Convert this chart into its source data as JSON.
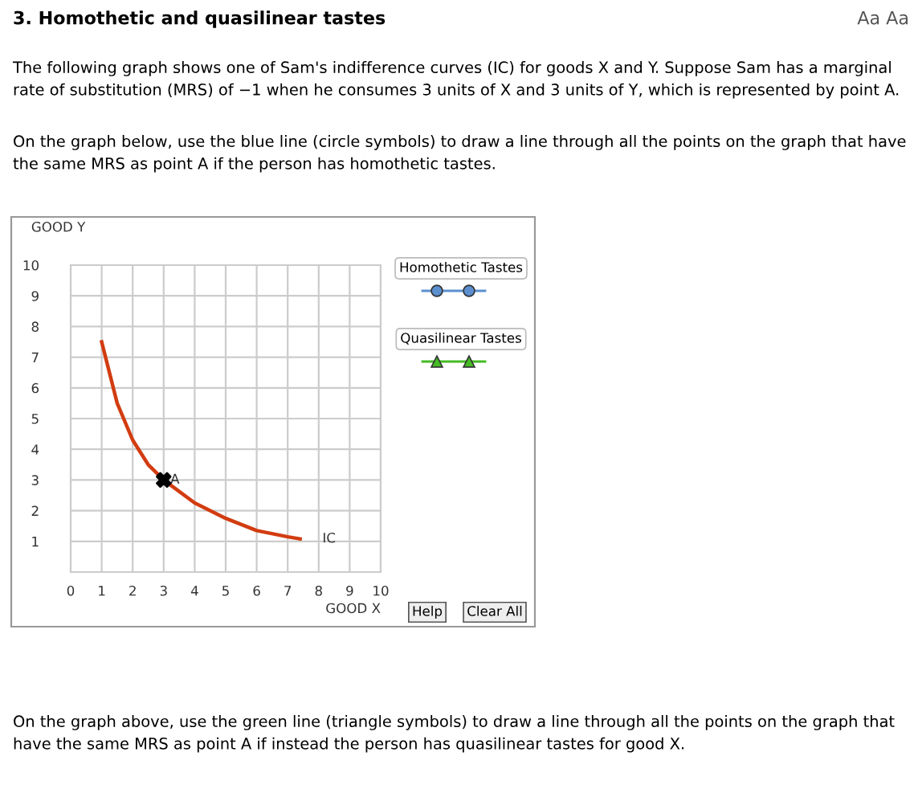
{
  "chart_data": {
    "type": "line",
    "title": "3. Homothetic and quasilinear tastes",
    "subtitle": "The following graph shows one of Sam's indifference curves (IC) for goods X and Y. Suppose Sam has a marginal rate of substitution (MRS) of −1 when he consumes 3 units of X and 3 units of Y, which is represented by point A.",
    "annotations": [
      "Aa Aa",
      "On the graph below, use the blue line (circle symbols) to draw a line through all the points on the graph that have the same MRS as point A if the person has homothetic tastes.",
      "Homothetic Tastes",
      "Quasilinear Tastes",
      "Help",
      "Clear All",
      "On the graph above, use the green line (triangle symbols) to draw a line through all the points on the graph that have the same MRS as point A if instead the person has quasilinear tastes for good X."
    ],
    "xlabel": "GOOD X",
    "ylabel": "GOOD Y",
    "series": [
      {
        "name": "IC",
        "color": "#d23c10",
        "marker": "none",
        "x": [
          1,
          1.5,
          2,
          2.5,
          3,
          4,
          5,
          6,
          7,
          7.4
        ],
        "values": [
          7.5,
          5.5,
          4.3,
          3.5,
          3,
          2.25,
          1.75,
          1.35,
          1.15,
          1.08
        ]
      },
      {
        "name": "A",
        "type": "scatter",
        "color": "#000000",
        "marker": "cross",
        "x": [
          3
        ],
        "values": [
          3
        ]
      }
    ],
    "xlim": [
      0,
      10
    ],
    "ylim": [
      0,
      10
    ],
    "xticks": [
      0,
      1,
      2,
      3,
      4,
      5,
      6,
      7,
      8,
      9,
      10
    ],
    "yticks": [
      {
        "value": 0,
        "label": null
      },
      1,
      2,
      3,
      4,
      5,
      6,
      7,
      8,
      9,
      10
    ],
    "grid": true
  }
}
